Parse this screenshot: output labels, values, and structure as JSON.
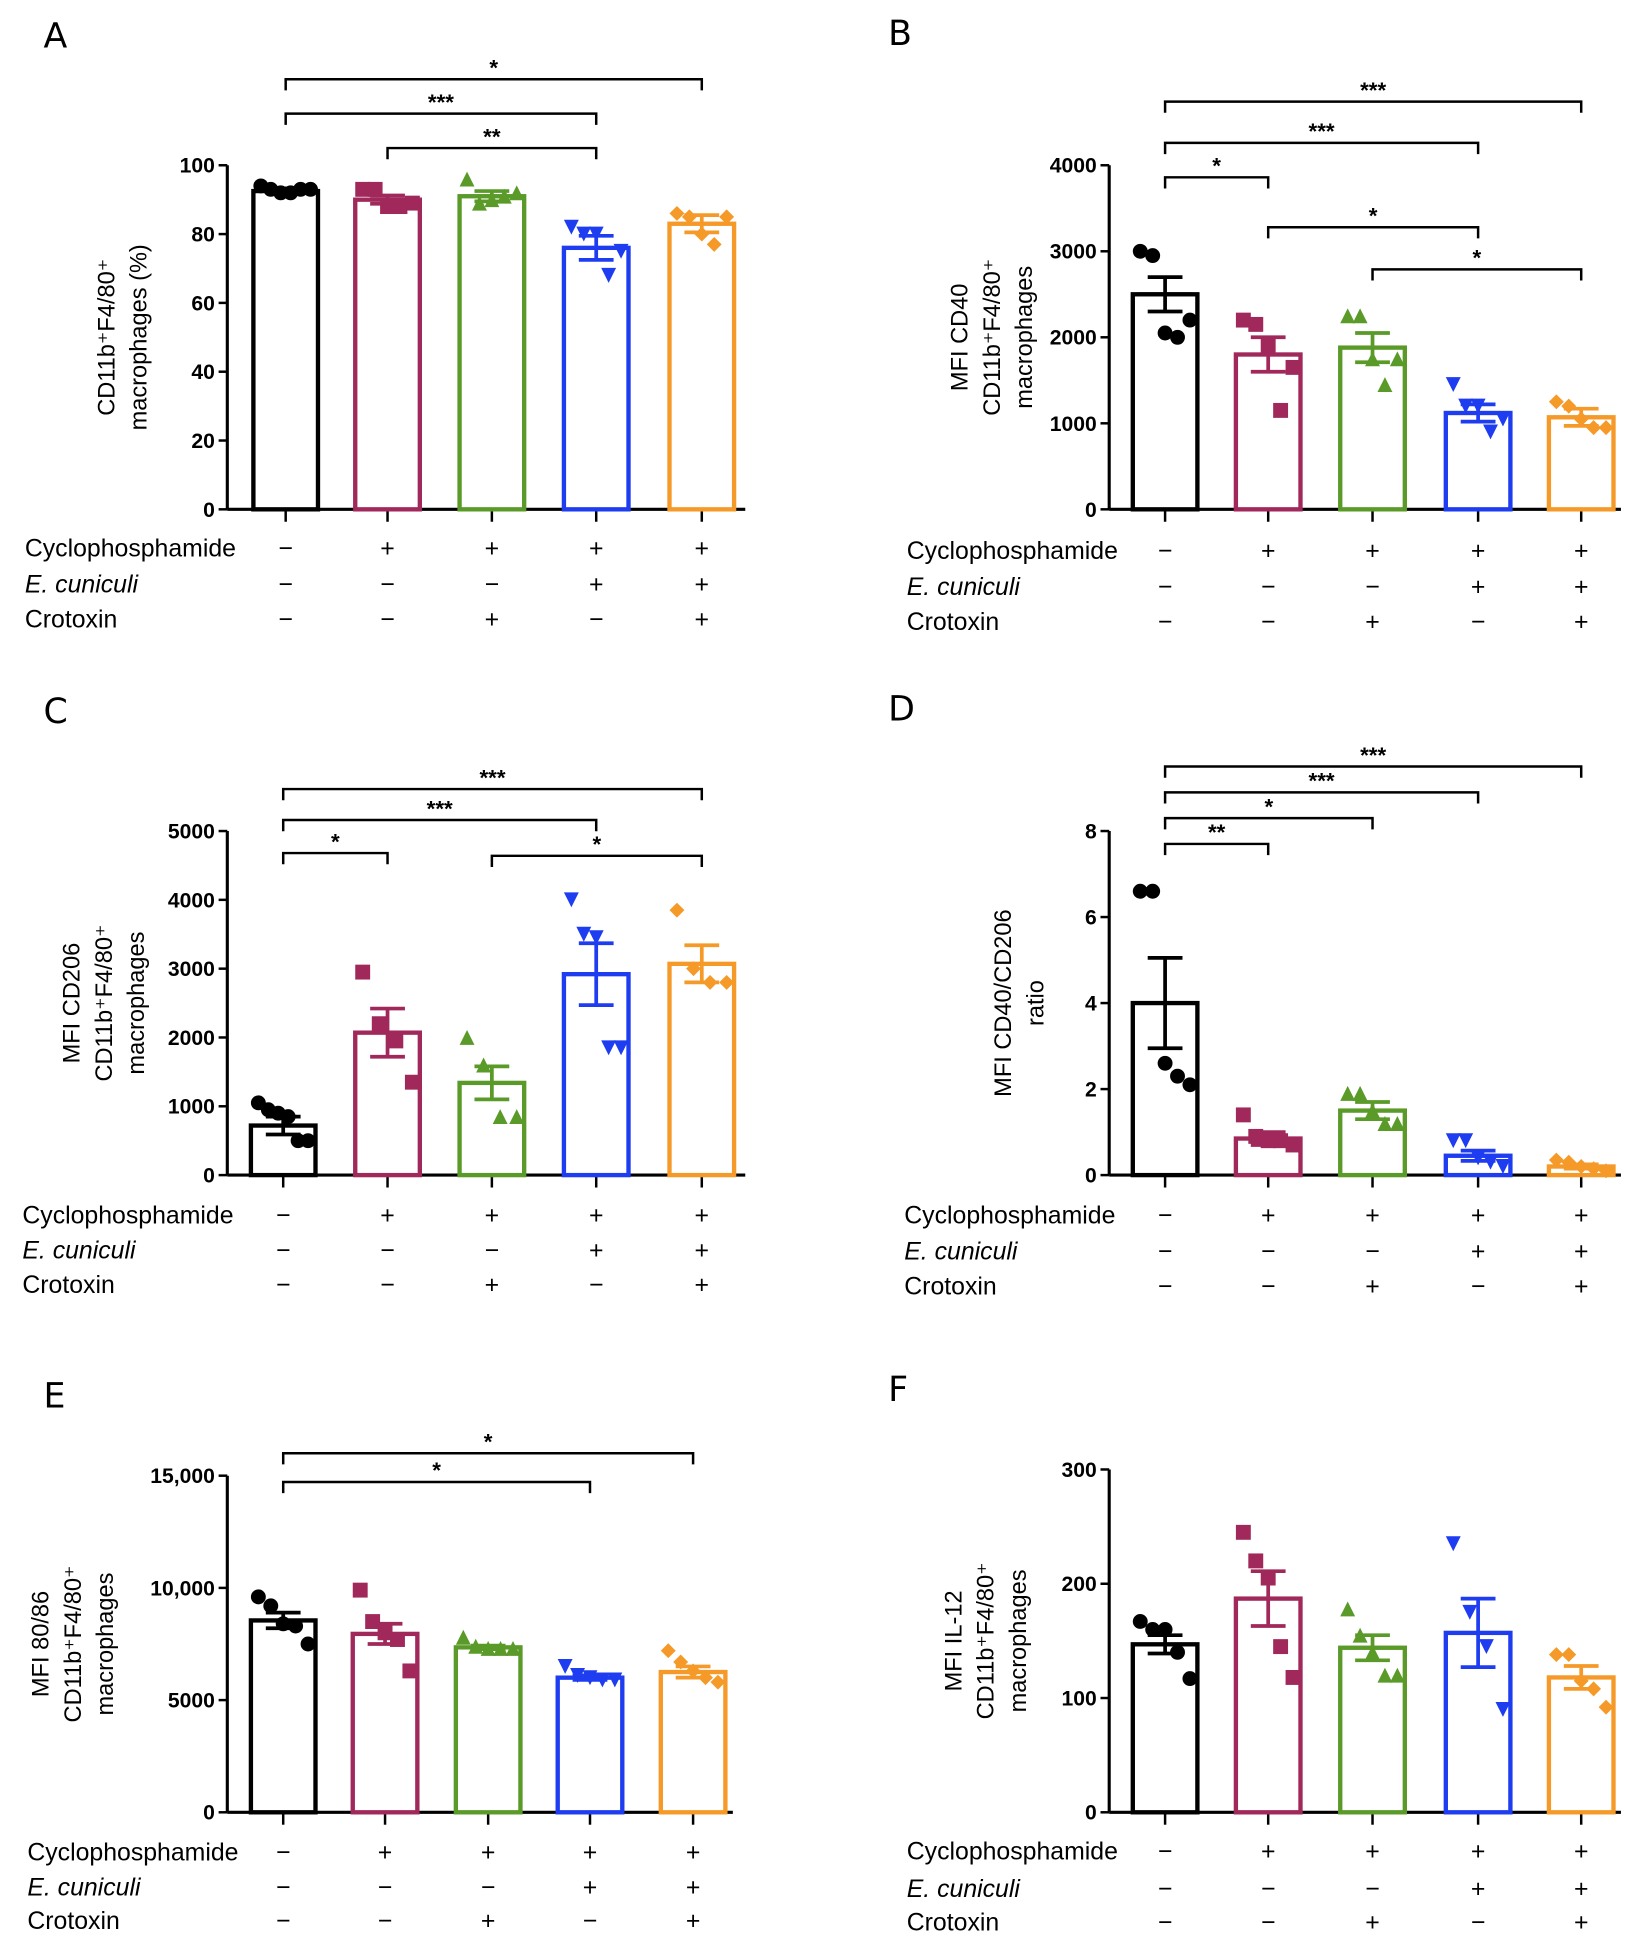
{
  "colors": [
    "#000000",
    "#a0285a",
    "#5a9a28",
    "#1e3cf0",
    "#f59a28"
  ],
  "markers": [
    "circle",
    "square",
    "triangle",
    "triangle-down",
    "diamond"
  ],
  "treatments": {
    "rows": [
      {
        "label": "Cyclophosphamide",
        "italic": false,
        "signs": [
          "−",
          "+",
          "+",
          "+",
          "+"
        ]
      },
      {
        "label": "E. cuniculi",
        "italic": true,
        "signs": [
          "−",
          "−",
          "−",
          "+",
          "+"
        ]
      },
      {
        "label": "Crotoxin",
        "italic": false,
        "signs": [
          "−",
          "−",
          "+",
          "−",
          "+"
        ]
      }
    ]
  },
  "chart_data": [
    {
      "panel": "A",
      "type": "bar",
      "ylabel": [
        "CD11b⁺F4/80⁺",
        "macrophages (%)"
      ],
      "ylim": [
        0,
        100
      ],
      "yticks": [
        {
          "v": 0,
          "t": "0"
        },
        {
          "v": 20,
          "t": "20"
        },
        {
          "v": 40,
          "t": "40"
        },
        {
          "v": 60,
          "t": "60"
        },
        {
          "v": 80,
          "t": "80"
        },
        {
          "v": 100,
          "t": "100"
        }
      ],
      "groups": [
        {
          "mean": 92.5,
          "sem": 0.8,
          "points": [
            94,
            93,
            92,
            92,
            93,
            93
          ]
        },
        {
          "mean": 90,
          "sem": 1.2,
          "points": [
            93,
            93,
            88,
            88,
            89
          ]
        },
        {
          "mean": 91,
          "sem": 1.5,
          "points": [
            96,
            89,
            90,
            91,
            92
          ]
        },
        {
          "mean": 76,
          "sem": 3.5,
          "points": [
            82,
            80,
            80,
            68,
            75
          ]
        },
        {
          "mean": 83,
          "sem": 2.5,
          "points": [
            86,
            85,
            80,
            77,
            85
          ]
        }
      ],
      "comparisons": [
        {
          "from": 0,
          "to": 4,
          "label": "*",
          "y": 125
        },
        {
          "from": 0,
          "to": 3,
          "label": "***",
          "y": 115
        },
        {
          "from": 1,
          "to": 3,
          "label": "**",
          "y": 105
        }
      ]
    },
    {
      "panel": "B",
      "type": "bar",
      "ylabel": [
        "MFI CD40",
        "CD11b⁺F4/80⁺",
        "macrophages"
      ],
      "ylim": [
        0,
        4000
      ],
      "yticks": [
        {
          "v": 0,
          "t": "0"
        },
        {
          "v": 1000,
          "t": "1000"
        },
        {
          "v": 2000,
          "t": "2000"
        },
        {
          "v": 3000,
          "t": "3000"
        },
        {
          "v": 4000,
          "t": "4000"
        }
      ],
      "groups": [
        {
          "mean": 2500,
          "sem": 200,
          "points": [
            3000,
            2950,
            2050,
            2000,
            2200
          ]
        },
        {
          "mean": 1800,
          "sem": 200,
          "points": [
            2200,
            2150,
            1900,
            1150,
            1650
          ]
        },
        {
          "mean": 1880,
          "sem": 170,
          "points": [
            2250,
            2250,
            1750,
            1450,
            1750
          ]
        },
        {
          "mean": 1120,
          "sem": 100,
          "points": [
            1450,
            1200,
            1200,
            900,
            1050
          ]
        },
        {
          "mean": 1070,
          "sem": 100,
          "points": [
            1250,
            1200,
            1050,
            950,
            950
          ]
        }
      ],
      "comparisons": [
        {
          "from": 0,
          "to": 4,
          "label": "***",
          "y": 4740
        },
        {
          "from": 0,
          "to": 3,
          "label": "***",
          "y": 4260
        },
        {
          "from": 0,
          "to": 1,
          "label": "*",
          "y": 3860
        },
        {
          "from": 1,
          "to": 3,
          "label": "*",
          "y": 3280
        },
        {
          "from": 2,
          "to": 4,
          "label": "*",
          "y": 2790
        }
      ]
    },
    {
      "panel": "C",
      "type": "bar",
      "ylabel": [
        "MFI CD206",
        "CD11b⁺F4/80⁺",
        "macrophages"
      ],
      "ylim": [
        0,
        5000
      ],
      "yticks": [
        {
          "v": 0,
          "t": "0"
        },
        {
          "v": 1000,
          "t": "1000"
        },
        {
          "v": 2000,
          "t": "2000"
        },
        {
          "v": 3000,
          "t": "3000"
        },
        {
          "v": 4000,
          "t": "4000"
        },
        {
          "v": 5000,
          "t": "5000"
        }
      ],
      "groups": [
        {
          "mean": 720,
          "sem": 130,
          "points": [
            1050,
            950,
            900,
            850,
            500,
            500
          ]
        },
        {
          "mean": 2070,
          "sem": 350,
          "points": [
            2950,
            2200,
            1950,
            1350
          ]
        },
        {
          "mean": 1340,
          "sem": 240,
          "points": [
            2000,
            1600,
            850,
            850
          ]
        },
        {
          "mean": 2920,
          "sem": 450,
          "points": [
            4000,
            3500,
            3450,
            1850,
            1850
          ]
        },
        {
          "mean": 3070,
          "sem": 270,
          "points": [
            3850,
            3000,
            2800,
            2800
          ]
        }
      ],
      "comparisons": [
        {
          "from": 0,
          "to": 4,
          "label": "***",
          "y": 5610
        },
        {
          "from": 0,
          "to": 3,
          "label": "***",
          "y": 5160
        },
        {
          "from": 0,
          "to": 1,
          "label": "*",
          "y": 4680
        },
        {
          "from": 2,
          "to": 4,
          "label": "*",
          "y": 4640
        }
      ]
    },
    {
      "panel": "D",
      "type": "bar",
      "ylabel": [
        "MFI CD40/CD206",
        "ratio"
      ],
      "ylim": [
        0,
        8
      ],
      "yticks": [
        {
          "v": 0,
          "t": "0"
        },
        {
          "v": 2,
          "t": "2"
        },
        {
          "v": 4,
          "t": "4"
        },
        {
          "v": 6,
          "t": "6"
        },
        {
          "v": 8,
          "t": "8"
        }
      ],
      "groups": [
        {
          "mean": 4.0,
          "sem": 1.05,
          "points": [
            6.6,
            6.6,
            2.6,
            2.3,
            2.1
          ]
        },
        {
          "mean": 0.85,
          "sem": 0.15,
          "points": [
            1.4,
            0.9,
            0.8,
            0.8,
            0.7
          ]
        },
        {
          "mean": 1.5,
          "sem": 0.2,
          "points": [
            1.9,
            1.9,
            1.5,
            1.2,
            1.2
          ]
        },
        {
          "mean": 0.45,
          "sem": 0.12,
          "points": [
            0.8,
            0.8,
            0.4,
            0.3,
            0.2
          ]
        },
        {
          "mean": 0.2,
          "sem": 0.05,
          "points": [
            0.35,
            0.3,
            0.2,
            0.15,
            0.1
          ]
        }
      ],
      "comparisons": [
        {
          "from": 0,
          "to": 4,
          "label": "***",
          "y": 9.5
        },
        {
          "from": 0,
          "to": 3,
          "label": "***",
          "y": 8.9
        },
        {
          "from": 0,
          "to": 2,
          "label": "*",
          "y": 8.3
        },
        {
          "from": 0,
          "to": 1,
          "label": "**",
          "y": 7.7
        }
      ]
    },
    {
      "panel": "E",
      "type": "bar",
      "ylabel": [
        "MFI 80/86",
        "CD11b⁺F4/80⁺",
        "macrophages"
      ],
      "ylim": [
        0,
        15000
      ],
      "yticks": [
        {
          "v": 0,
          "t": "0"
        },
        {
          "v": 5000,
          "t": "5000"
        },
        {
          "v": 10000,
          "t": "10,000"
        },
        {
          "v": 15000,
          "t": "15,000"
        }
      ],
      "groups": [
        {
          "mean": 8550,
          "sem": 350,
          "points": [
            9600,
            9200,
            8400,
            8300,
            7500
          ]
        },
        {
          "mean": 7950,
          "sem": 450,
          "points": [
            9900,
            8500,
            8000,
            7700,
            6300
          ]
        },
        {
          "mean": 7350,
          "sem": 80,
          "points": [
            7800,
            7400,
            7300,
            7300,
            7300
          ]
        },
        {
          "mean": 6000,
          "sem": 100,
          "points": [
            6500,
            6100,
            6000,
            5900,
            5900
          ]
        },
        {
          "mean": 6250,
          "sem": 250,
          "points": [
            7200,
            6700,
            6300,
            6000,
            5800
          ]
        }
      ],
      "comparisons": [
        {
          "from": 0,
          "to": 4,
          "label": "*",
          "y": 16000
        },
        {
          "from": 0,
          "to": 3,
          "label": "*",
          "y": 14720
        }
      ]
    },
    {
      "panel": "F",
      "type": "bar",
      "ylabel": [
        "MFI IL-12",
        "CD11b⁺F4/80⁺",
        "macrophages"
      ],
      "ylim": [
        0,
        300
      ],
      "yticks": [
        {
          "v": 0,
          "t": "0"
        },
        {
          "v": 100,
          "t": "100"
        },
        {
          "v": 200,
          "t": "200"
        },
        {
          "v": 300,
          "t": "300"
        }
      ],
      "groups": [
        {
          "mean": 147,
          "sem": 8,
          "points": [
            167,
            160,
            160,
            140,
            117
          ]
        },
        {
          "mean": 187,
          "sem": 24,
          "points": [
            245,
            220,
            205,
            145,
            118
          ]
        },
        {
          "mean": 144,
          "sem": 11,
          "points": [
            178,
            155,
            140,
            120,
            120
          ]
        },
        {
          "mean": 157,
          "sem": 30,
          "points": [
            235,
            175,
            145,
            90
          ]
        },
        {
          "mean": 118,
          "sem": 10,
          "points": [
            138,
            138,
            115,
            108,
            92
          ]
        }
      ],
      "comparisons": []
    }
  ]
}
